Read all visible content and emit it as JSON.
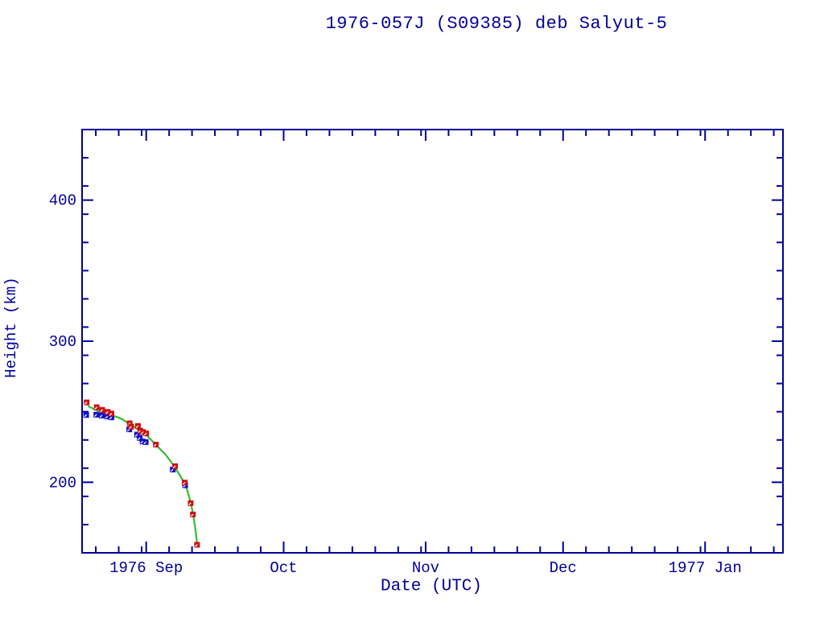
{
  "page": {
    "background": "#FFFFFF"
  },
  "chart_data": {
    "type": "scatter",
    "title": "1976-057J (S09385) deb Salyut-5",
    "xlabel": "Date (UTC)",
    "ylabel": "Height (km)",
    "x_unit": "days since 1976-08-18 00:00 UTC",
    "xlim": [
      0,
      153
    ],
    "ylim": [
      150,
      450
    ],
    "grid": false,
    "legend": "none",
    "x_major_ticks": [
      {
        "day": 14,
        "label": "1976 Sep"
      },
      {
        "day": 44,
        "label": "Oct"
      },
      {
        "day": 75,
        "label": "Nov"
      },
      {
        "day": 105,
        "label": "Dec"
      },
      {
        "day": 136,
        "label": "1977 Jan"
      }
    ],
    "x_minor_tick_days": [
      3,
      8,
      13,
      19,
      24,
      29,
      34,
      39,
      49,
      54,
      59,
      64,
      69,
      74,
      80,
      85,
      90,
      95,
      100,
      110,
      115,
      120,
      125,
      130,
      135,
      141,
      146,
      151
    ],
    "y_major_ticks": [
      200,
      300,
      400
    ],
    "y_minor_tick_step": 20,
    "colors": {
      "axis_and_text": "#000099",
      "apogee": "#CC1111",
      "perigee": "#1111CC",
      "mean_line": "#33BB33",
      "marker_notch": "#FFFFFF"
    },
    "series": [
      {
        "name": "apogee height",
        "marker": "square",
        "color_key": "apogee",
        "points": [
          [
            1.0,
            256.6
          ],
          [
            3.2,
            253.2
          ],
          [
            4.4,
            251.3
          ],
          [
            5.6,
            249.9
          ],
          [
            6.4,
            248.7
          ],
          [
            10.4,
            241.8
          ],
          [
            10.7,
            239.4
          ],
          [
            12.2,
            239.9
          ],
          [
            12.7,
            236.6
          ],
          [
            13.3,
            235.6
          ],
          [
            14.0,
            234.6
          ],
          [
            16.1,
            226.7
          ],
          [
            20.3,
            211.4
          ],
          [
            22.4,
            199.8
          ],
          [
            23.7,
            185.2
          ],
          [
            24.2,
            177.2
          ],
          [
            25.1,
            155.7
          ]
        ]
      },
      {
        "name": "perigee height",
        "marker": "square",
        "color_key": "perigee",
        "points": [
          [
            0.9,
            247.7
          ],
          [
            3.1,
            247.9
          ],
          [
            4.3,
            247.3
          ],
          [
            5.5,
            246.6
          ],
          [
            6.4,
            246.0
          ],
          [
            10.3,
            237.5
          ],
          [
            12.0,
            233.8
          ],
          [
            12.6,
            231.4
          ],
          [
            13.2,
            228.9
          ],
          [
            13.9,
            228.5
          ],
          [
            19.8,
            209.0
          ],
          [
            22.5,
            197.9
          ]
        ]
      },
      {
        "name": "mean height",
        "type": "line",
        "color_key": "mean_line",
        "points": [
          [
            1.3,
            254.0
          ],
          [
            3.2,
            250.9
          ],
          [
            4.4,
            249.7
          ],
          [
            6.3,
            247.5
          ],
          [
            7.6,
            246.3
          ],
          [
            8.8,
            244.6
          ],
          [
            10.4,
            241.2
          ],
          [
            11.6,
            238.9
          ],
          [
            12.6,
            236.6
          ],
          [
            14.1,
            233.2
          ],
          [
            15.5,
            228.7
          ],
          [
            16.5,
            225.2
          ],
          [
            18.1,
            220.1
          ],
          [
            19.3,
            215.0
          ],
          [
            20.4,
            209.9
          ],
          [
            21.4,
            204.7
          ],
          [
            22.3,
            199.6
          ],
          [
            23.0,
            193.9
          ],
          [
            23.7,
            185.9
          ],
          [
            24.2,
            177.9
          ],
          [
            24.6,
            170.0
          ],
          [
            24.9,
            162.5
          ],
          [
            25.1,
            156.3
          ]
        ]
      }
    ]
  }
}
